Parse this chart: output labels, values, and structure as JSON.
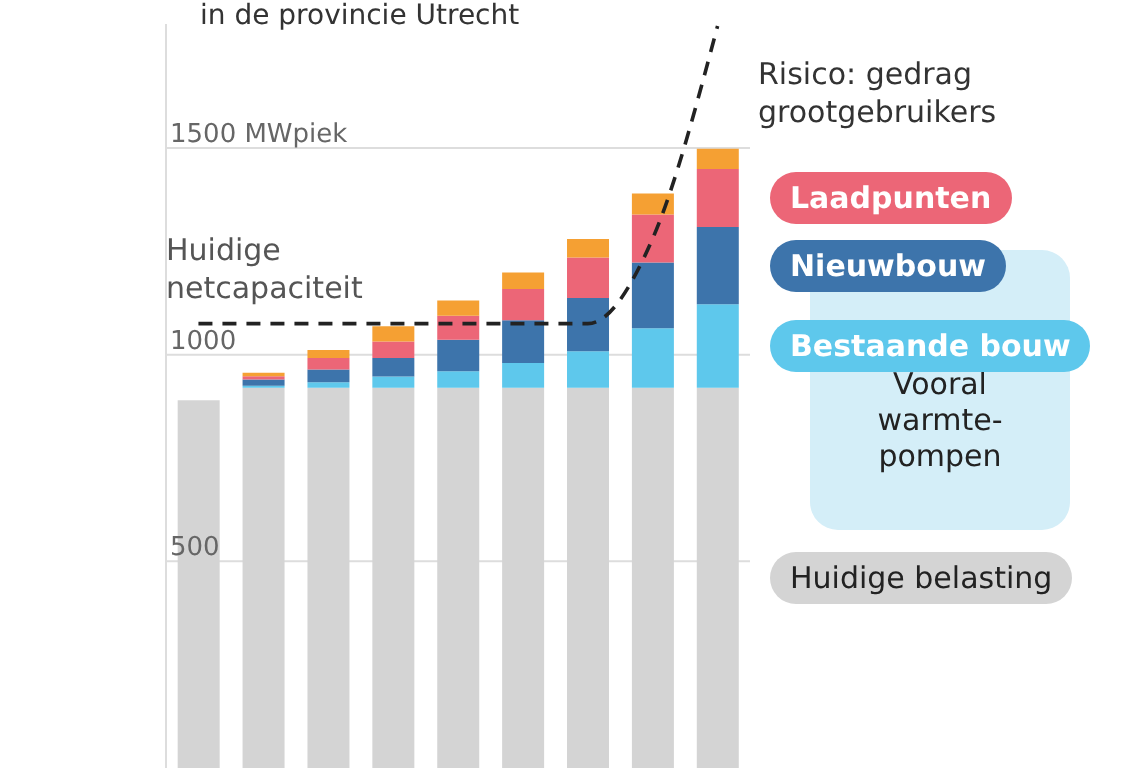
{
  "chart_data": {
    "type": "bar",
    "title": "in de provincie Utrecht",
    "stacked": true,
    "categories": [
      null,
      null,
      null,
      null,
      null,
      null,
      null,
      null,
      null
    ],
    "series": [
      {
        "name": "Huidige belasting",
        "color": "#d4d4d4",
        "values": [
          890,
          920,
          920,
          920,
          920,
          920,
          920,
          920,
          920
        ]
      },
      {
        "name": "Bestaande bouw",
        "color": "#5ec8ec",
        "values": [
          null,
          5,
          13,
          27,
          40,
          60,
          88,
          144,
          202
        ]
      },
      {
        "name": "Nieuwbouw",
        "color": "#3d74ab",
        "values": [
          null,
          15,
          31,
          45,
          76,
          103,
          129,
          159,
          187
        ]
      },
      {
        "name": "Laadpunten",
        "color": "#ec6677",
        "values": [
          null,
          8,
          28,
          40,
          58,
          76,
          98,
          116,
          140
        ]
      },
      {
        "name": "Risico: gedrag grootgebruikers",
        "color": "#f5a033",
        "values": [
          null,
          8,
          19,
          37,
          37,
          40,
          45,
          51,
          49
        ]
      },
      {
        "name": "Huidige netcapaciteit",
        "type": "line",
        "color": "#222222",
        "line_style": "dashed",
        "marker": "none",
        "values": [
          1075,
          1075,
          1075,
          1075,
          1075,
          1075,
          1075,
          1281,
          1795
        ]
      }
    ],
    "ylim": [
      0,
      1800
    ],
    "yticks": [
      500,
      1000,
      {
        "value": 1500,
        "label": "1500 MWpiek"
      }
    ],
    "grid": "y",
    "tick_labels": "y",
    "annotations": [
      "Vooral warmte-pompen"
    ]
  }
}
